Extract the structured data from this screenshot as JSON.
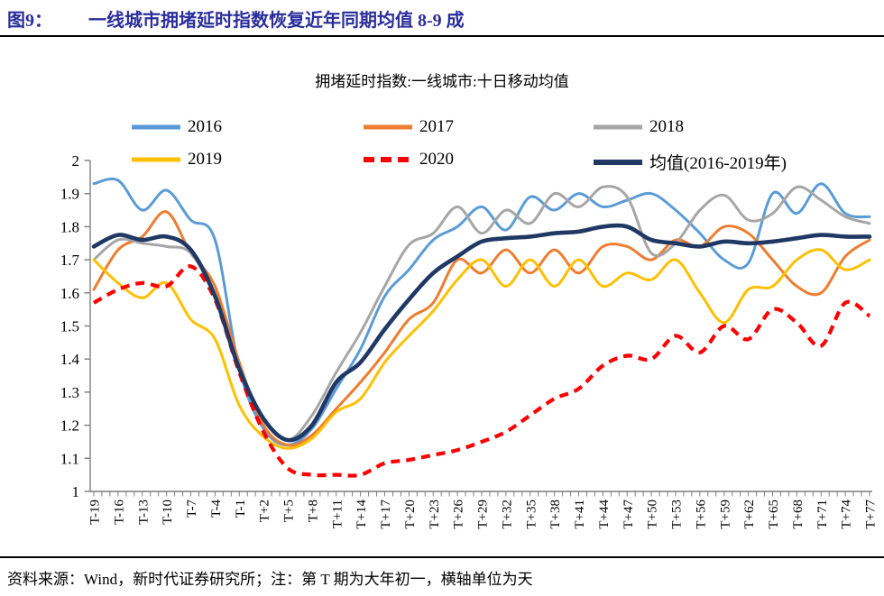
{
  "header": {
    "prefix": "图9：",
    "title": "一线城市拥堵延时指数恢复近年同期均值 8-9 成",
    "color": "#2B2E9B"
  },
  "chart_data": {
    "type": "line",
    "title": "拥堵延时指数:一线城市:十日移动均值",
    "xlabel": "",
    "ylabel": "",
    "ylim": [
      1,
      2
    ],
    "y_ticks": [
      1,
      1.1,
      1.2,
      1.3,
      1.4,
      1.5,
      1.6,
      1.7,
      1.8,
      1.9,
      2
    ],
    "x_range": [
      -19,
      77
    ],
    "x_minor_tick_step": 1,
    "x_days": [
      -19,
      -16,
      -13,
      -10,
      -7,
      -4,
      -1,
      2,
      5,
      8,
      11,
      14,
      17,
      20,
      23,
      26,
      29,
      32,
      35,
      38,
      41,
      44,
      47,
      50,
      53,
      56,
      59,
      62,
      65,
      68,
      71,
      74,
      77
    ],
    "x_tick_labels": [
      "T-19",
      "T-16",
      "T-13",
      "T-10",
      "T-7",
      "T-4",
      "T-1",
      "T+2",
      "T+5",
      "T+8",
      "T+11",
      "T+14",
      "T+17",
      "T+20",
      "T+23",
      "T+26",
      "T+29",
      "T+32",
      "T+35",
      "T+38",
      "T+41",
      "T+44",
      "T+47",
      "T+50",
      "T+53",
      "T+56",
      "T+59",
      "T+62",
      "T+65",
      "T+68",
      "T+71",
      "T+74",
      "T+77"
    ],
    "grid": "off",
    "legend_position": "top",
    "axis_color": "#7F7F7F",
    "series": [
      {
        "name": "2016",
        "color": "#5B9BD5",
        "style": "solid",
        "values": [
          1.93,
          1.94,
          1.85,
          1.91,
          1.82,
          1.76,
          1.37,
          1.19,
          1.14,
          1.19,
          1.31,
          1.43,
          1.59,
          1.67,
          1.76,
          1.8,
          1.86,
          1.79,
          1.89,
          1.85,
          1.9,
          1.86,
          1.88,
          1.9,
          1.85,
          1.78,
          1.7,
          1.69,
          1.9,
          1.84,
          1.93,
          1.84,
          1.83
        ]
      },
      {
        "name": "2017",
        "color": "#ED7D31",
        "style": "solid",
        "values": [
          1.61,
          1.73,
          1.77,
          1.845,
          1.72,
          1.62,
          1.39,
          1.2,
          1.14,
          1.17,
          1.25,
          1.33,
          1.42,
          1.52,
          1.57,
          1.7,
          1.66,
          1.73,
          1.66,
          1.73,
          1.66,
          1.74,
          1.74,
          1.7,
          1.76,
          1.74,
          1.8,
          1.78,
          1.7,
          1.62,
          1.6,
          1.71,
          1.76
        ]
      },
      {
        "name": "2018",
        "color": "#A6A6A6",
        "style": "solid",
        "values": [
          1.7,
          1.76,
          1.75,
          1.74,
          1.72,
          1.585,
          1.38,
          1.22,
          1.155,
          1.23,
          1.36,
          1.48,
          1.62,
          1.745,
          1.78,
          1.86,
          1.78,
          1.85,
          1.81,
          1.9,
          1.86,
          1.92,
          1.89,
          1.72,
          1.75,
          1.85,
          1.895,
          1.82,
          1.84,
          1.92,
          1.88,
          1.83,
          1.81
        ]
      },
      {
        "name": "2019",
        "color": "#FFC000",
        "style": "solid",
        "values": [
          1.7,
          1.63,
          1.585,
          1.63,
          1.52,
          1.46,
          1.26,
          1.165,
          1.13,
          1.16,
          1.24,
          1.28,
          1.39,
          1.47,
          1.545,
          1.64,
          1.7,
          1.62,
          1.7,
          1.62,
          1.7,
          1.62,
          1.66,
          1.64,
          1.7,
          1.6,
          1.51,
          1.61,
          1.62,
          1.7,
          1.73,
          1.67,
          1.7
        ]
      },
      {
        "name": "2020",
        "color": "#FF0000",
        "style": "dashed",
        "values": [
          1.57,
          1.61,
          1.63,
          1.62,
          1.68,
          1.58,
          1.36,
          1.18,
          1.07,
          1.05,
          1.05,
          1.05,
          1.085,
          1.095,
          1.11,
          1.125,
          1.15,
          1.18,
          1.23,
          1.28,
          1.31,
          1.38,
          1.41,
          1.4,
          1.47,
          1.42,
          1.5,
          1.46,
          1.55,
          1.51,
          1.44,
          1.57,
          1.53
        ]
      },
      {
        "name": "均值(2016-2019年)",
        "color": "#1F3864",
        "style": "solid-bold",
        "values": [
          1.74,
          1.775,
          1.76,
          1.77,
          1.73,
          1.59,
          1.37,
          1.22,
          1.155,
          1.2,
          1.33,
          1.39,
          1.49,
          1.58,
          1.66,
          1.71,
          1.755,
          1.765,
          1.77,
          1.78,
          1.785,
          1.8,
          1.8,
          1.76,
          1.75,
          1.74,
          1.755,
          1.75,
          1.755,
          1.765,
          1.775,
          1.77,
          1.77
        ]
      }
    ],
    "legend_rows": [
      [
        "2016",
        "2017",
        "2018"
      ],
      [
        "2019",
        "2020",
        "均值(2016-2019年)"
      ]
    ]
  },
  "footer": {
    "text": "资料来源：Wind，新时代证券研究所；注：第 T 期为大年初一，横轴单位为天"
  }
}
